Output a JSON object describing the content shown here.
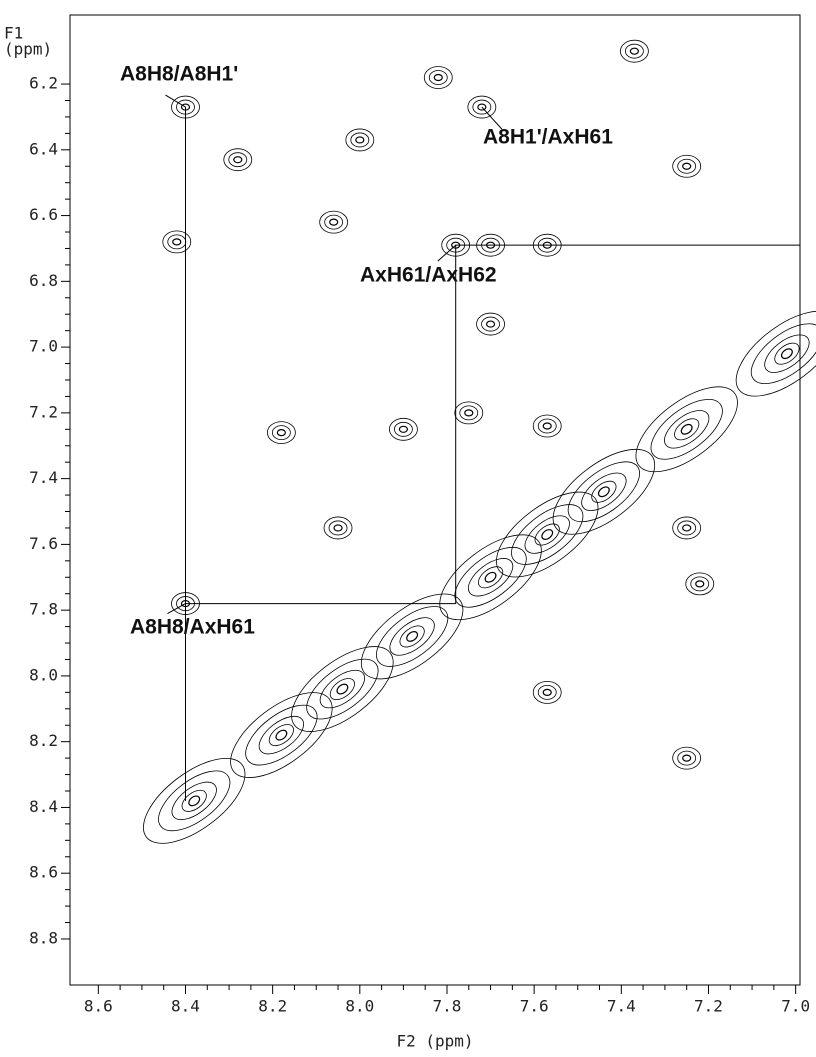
{
  "chart_data": {
    "type": "contour",
    "x_label": "F2 (ppm)",
    "y_label_lines": [
      "F1",
      "(ppm)"
    ],
    "xlim": [
      8.665,
      6.99
    ],
    "ylim": [
      5.99,
      8.94
    ],
    "xticks": [
      8.6,
      8.4,
      8.2,
      {
        "value": 8,
        "label": "8.0"
      },
      7.8,
      7.6,
      7.4,
      7.2,
      {
        "value": 7,
        "label": "7.0"
      }
    ],
    "yticks": [
      6.2,
      6.4,
      6.6,
      6.8,
      {
        "value": 7,
        "label": "7.0"
      },
      7.2,
      7.4,
      7.6,
      7.8,
      {
        "value": 8,
        "label": "8.0"
      },
      8.2,
      8.4,
      8.6,
      8.8
    ],
    "color": "#000000",
    "peaks": {
      "x": [
        8.38,
        8.18,
        8.04,
        7.88,
        7.7,
        7.57,
        7.44,
        7.25,
        7.02,
        8.4,
        8.4,
        7.78,
        7.7,
        7.57,
        8.42,
        7.72,
        7.37,
        7.25,
        8.28,
        8.06,
        8.0,
        7.82,
        7.57,
        7.75,
        7.9,
        7.25,
        7.22,
        7.7,
        7.57,
        8.05,
        8.18,
        7.25
      ],
      "y": [
        8.38,
        8.18,
        8.04,
        7.88,
        7.7,
        7.57,
        7.44,
        7.25,
        7.02,
        6.27,
        7.78,
        6.69,
        6.69,
        6.69,
        6.68,
        6.27,
        6.1,
        6.45,
        6.43,
        6.62,
        6.37,
        6.18,
        7.24,
        7.2,
        7.25,
        7.55,
        7.72,
        6.93,
        8.05,
        7.55,
        7.26,
        8.25
      ]
    },
    "lines": [
      {
        "x": [
          8.4,
          8.4
        ],
        "y": [
          6.27,
          8.38
        ]
      },
      {
        "x": [
          8.4,
          7.78,
          7.78
        ],
        "y": [
          7.78,
          7.78,
          6.69
        ]
      }
    ],
    "annotations": [
      {
        "text": "A8H8/A8H1'",
        "x": 8.4,
        "y": 6.27
      },
      {
        "text": "A8H1'/AxH61",
        "x": 7.72,
        "y": 6.27
      },
      {
        "text": "AxH61/AxH62",
        "x": 7.78,
        "y": 6.69
      },
      {
        "text": "A8H8/AxH61",
        "x": 8.4,
        "y": 7.78
      }
    ]
  }
}
